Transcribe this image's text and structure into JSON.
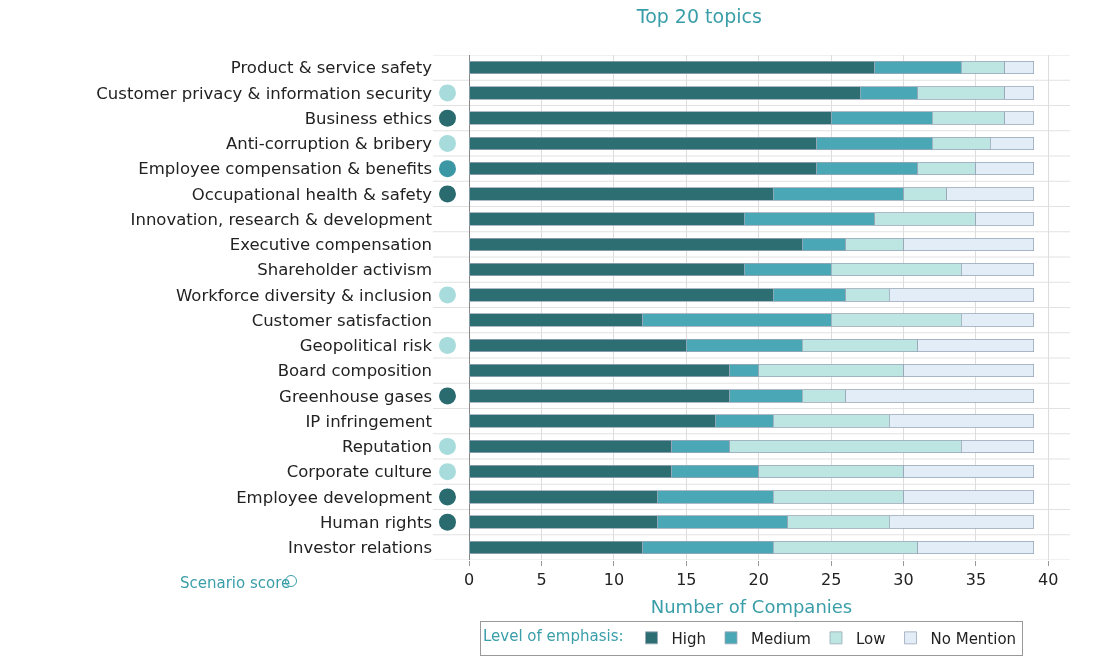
{
  "chart_data": {
    "type": "bar",
    "orientation": "horizontal",
    "stacked": true,
    "title": "Top 20 topics",
    "xlabel": "Number of Companies",
    "legend_title": "Level of emphasis:",
    "legend": "bottom",
    "grid": true,
    "categories": [
      "Product & service safety",
      "Customer privacy & information security",
      "Business ethics",
      "Anti-corruption & bribery",
      "Employee compensation & benefits",
      "Occupational health & safety",
      "Innovation, research & development",
      "Executive compensation",
      "Shareholder activism",
      "Workforce diversity & inclusion",
      "Customer satisfaction",
      "Geopolitical risk",
      "Board composition",
      "Greenhouse gases",
      "IP infringement",
      "Reputation",
      "Corporate culture",
      "Employee development",
      "Human rights",
      "Investor relations"
    ],
    "xlim": [
      -2.5,
      41.5
    ],
    "xticks": [
      0,
      5,
      10,
      15,
      20,
      25,
      30,
      35,
      40
    ],
    "annotations": [
      "Scenario score"
    ],
    "series": [
      {
        "name": "High",
        "color": "#2d6e73",
        "values": [
          28,
          27,
          25,
          24,
          24,
          21,
          19,
          23,
          19,
          21,
          12,
          15,
          18,
          18,
          17,
          14,
          14,
          13,
          13,
          12
        ]
      },
      {
        "name": "Medium",
        "color": "#4aa7b5",
        "values": [
          6,
          4,
          7,
          8,
          7,
          9,
          9,
          3,
          6,
          5,
          13,
          8,
          2,
          5,
          4,
          4,
          6,
          8,
          9,
          9
        ]
      },
      {
        "name": "Low",
        "color": "#bde6e3",
        "values": [
          3,
          6,
          5,
          4,
          4,
          3,
          7,
          4,
          9,
          3,
          9,
          8,
          10,
          3,
          8,
          16,
          10,
          9,
          7,
          10
        ]
      },
      {
        "name": "No Mention",
        "color": "#e3edf8",
        "values": [
          2,
          2,
          2,
          3,
          4,
          6,
          4,
          9,
          5,
          10,
          5,
          8,
          9,
          13,
          10,
          5,
          9,
          9,
          10,
          8
        ]
      },
      {
        "type": "scatter",
        "marker": "circle",
        "values": [
          null,
          -1.5,
          -1.5,
          -1.5,
          -1.5,
          -1.5,
          null,
          null,
          null,
          -1.5,
          null,
          -1.5,
          null,
          -1.5,
          null,
          -1.5,
          -1.5,
          -1.5,
          -1.5,
          null
        ],
        "colors": [
          "#ffffff",
          "#a8dcdc",
          "#2a6b70",
          "#a8dcdc",
          "#3a97a3",
          "#2a6b70",
          "#ffffff",
          "#ffffff",
          "#ffffff",
          "#a8dcdc",
          "#ffffff",
          "#a8dcdc",
          "#ffffff",
          "#2a6b70",
          "#ffffff",
          "#a8dcdc",
          "#a8dcdc",
          "#2a6b70",
          "#2a6b70",
          "#ffffff"
        ]
      }
    ]
  }
}
